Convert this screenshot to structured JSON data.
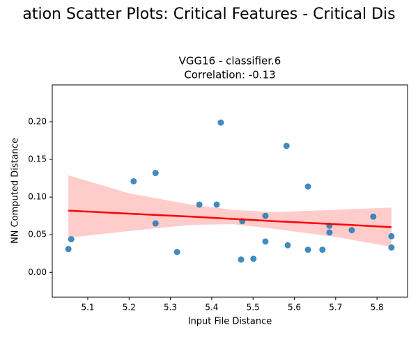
{
  "chart_data": {
    "type": "scatter",
    "suptitle": "ation Scatter Plots: Critical Features - Critical Dis",
    "title": "VGG16 - classifier.6",
    "subtitle": "Correlation: -0.13",
    "xlabel": "Input File Distance",
    "ylabel": "NN Computed Distance",
    "color": "#1f77b4",
    "x": [
      5.053,
      5.06,
      5.211,
      5.264,
      5.264,
      5.316,
      5.37,
      5.412,
      5.422,
      5.474,
      5.471,
      5.501,
      5.53,
      5.53,
      5.581,
      5.584,
      5.633,
      5.633,
      5.668,
      5.685,
      5.685,
      5.739,
      5.791,
      5.835,
      5.835
    ],
    "values": [
      0.031,
      0.044,
      0.121,
      0.132,
      0.065,
      0.027,
      0.09,
      0.09,
      0.199,
      0.068,
      0.017,
      0.018,
      0.075,
      0.041,
      0.168,
      0.036,
      0.114,
      0.03,
      0.03,
      0.062,
      0.053,
      0.056,
      0.074,
      0.048,
      0.033
    ],
    "fit": {
      "color": "#ff0000",
      "band_color": "#ffcccc",
      "x": [
        5.053,
        5.2,
        5.35,
        5.45,
        5.55,
        5.7,
        5.835
      ],
      "y": [
        0.082,
        0.078,
        0.074,
        0.071,
        0.068,
        0.064,
        0.06
      ],
      "lower": [
        0.046,
        0.055,
        0.063,
        0.064,
        0.058,
        0.047,
        0.034
      ],
      "upper": [
        0.129,
        0.105,
        0.09,
        0.083,
        0.08,
        0.083,
        0.086
      ]
    },
    "xlim": [
      5.014,
      5.874
    ],
    "ylim": [
      -0.033,
      0.249
    ],
    "xticks": [
      5.1,
      5.2,
      5.3,
      5.4,
      5.5,
      5.6,
      5.7,
      5.8
    ],
    "yticks": [
      {
        "value": 0,
        "label": "0.00"
      },
      {
        "value": 0.05,
        "label": "0.05"
      },
      {
        "value": 0.1,
        "label": "0.10"
      },
      {
        "value": 0.15,
        "label": "0.15"
      },
      {
        "value": 0.2,
        "label": "0.20"
      }
    ],
    "grid": false
  }
}
